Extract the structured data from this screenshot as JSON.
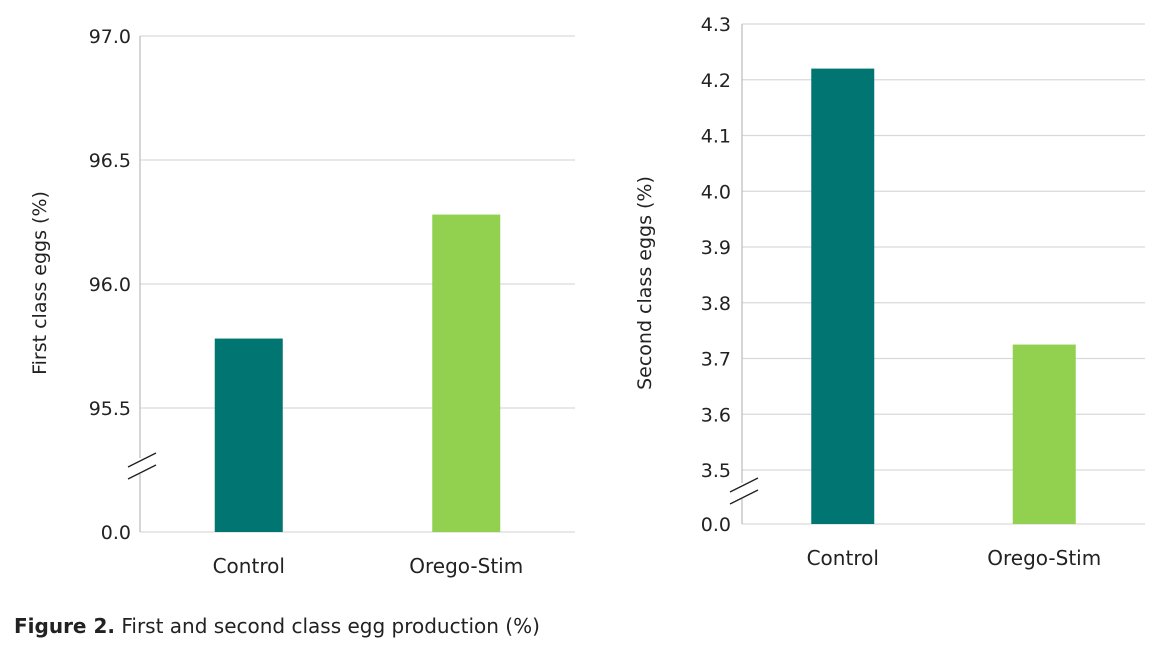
{
  "caption": {
    "bold": "Figure 2.",
    "text": " First and second class egg production (%)"
  },
  "colors": {
    "control": "#007572",
    "orego_stim": "#92d050",
    "grid": "#d9d9d9",
    "axis": "#bfbfbf"
  },
  "chart_data": [
    {
      "type": "bar",
      "categories": [
        "Control",
        "Orego-Stim"
      ],
      "values": [
        95.78,
        96.28
      ],
      "ylabel": "First class eggs (%)",
      "ylim": [
        95.5,
        97.0
      ],
      "yticks": [
        "97.0",
        "96.5",
        "96.0",
        "95.5"
      ],
      "ytick_values": [
        97.0,
        96.5,
        96.0,
        95.5
      ],
      "axis_break": true,
      "break_tick": "0.0",
      "grid": true
    },
    {
      "type": "bar",
      "categories": [
        "Control",
        "Orego-Stim"
      ],
      "values": [
        4.22,
        3.725
      ],
      "ylabel": "Second class eggs (%)",
      "ylim": [
        3.5,
        4.3
      ],
      "yticks": [
        "4.3",
        "4.2",
        "4.1",
        "4.0",
        "3.9",
        "3.8",
        "3.7",
        "3.6",
        "3.5"
      ],
      "ytick_values": [
        4.3,
        4.2,
        4.1,
        4.0,
        3.9,
        3.8,
        3.7,
        3.6,
        3.5
      ],
      "axis_break": true,
      "break_tick": "0.0",
      "grid": true
    }
  ]
}
